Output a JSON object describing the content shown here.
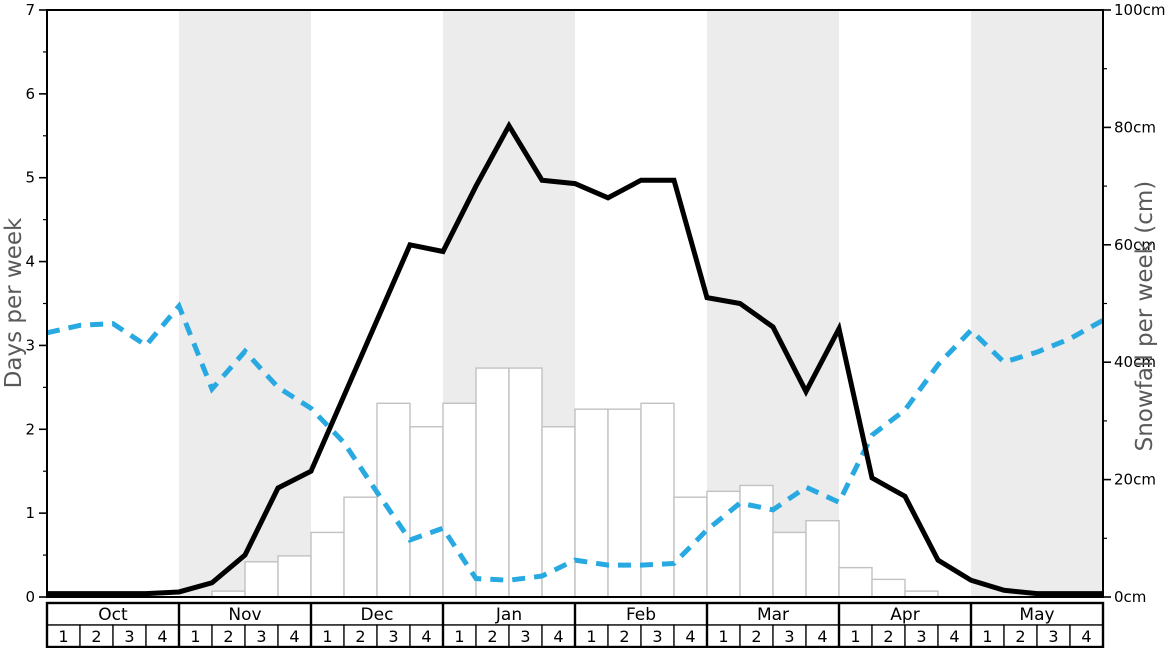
{
  "chart_data": {
    "type": "line",
    "title": "",
    "left_axis": {
      "label": "Days per week",
      "min": 0,
      "max": 7,
      "major_tick_step": 1,
      "minor_tick_step": 0.5,
      "tick_labels": [
        "0",
        "1",
        "2",
        "3",
        "4",
        "5",
        "6",
        "7"
      ]
    },
    "right_axis": {
      "label": "Snowfall per week (cm)",
      "min": 0,
      "max": 100,
      "major_tick_step": 20,
      "minor_tick_step": 10,
      "tick_labels": [
        "0cm",
        "20cm",
        "40cm",
        "60cm",
        "80cm",
        "100cm"
      ]
    },
    "x_axis": {
      "months": [
        "Oct",
        "Nov",
        "Dec",
        "Jan",
        "Feb",
        "Mar",
        "Apr",
        "May"
      ],
      "weeks_per_month": 4,
      "week_labels": [
        "1",
        "2",
        "3",
        "4"
      ],
      "shaded_months": [
        "Nov",
        "Jan",
        "Mar",
        "May"
      ]
    },
    "series": [
      {
        "name": "black-solid-line",
        "type": "line",
        "style": "solid",
        "axis": "left",
        "color": "#000000",
        "values_at_week_boundaries": [
          0.04,
          0.04,
          0.04,
          0.04,
          0.06,
          0.17,
          0.5,
          1.3,
          1.5,
          2.4,
          3.3,
          4.2,
          4.12,
          4.9,
          5.62,
          4.97,
          4.93,
          4.76,
          4.97,
          4.97,
          3.57,
          3.5,
          3.22,
          2.45,
          3.2,
          1.42,
          1.2,
          0.44,
          0.2,
          0.08,
          0.04,
          0.04,
          0.04
        ]
      },
      {
        "name": "blue-dashed-line",
        "type": "line",
        "style": "dashed",
        "axis": "left",
        "color": "#29a9e1",
        "values_at_week_boundaries": [
          3.15,
          3.24,
          3.26,
          3.0,
          3.47,
          2.48,
          2.93,
          2.5,
          2.25,
          1.84,
          1.25,
          0.68,
          0.82,
          0.22,
          0.2,
          0.25,
          0.44,
          0.38,
          0.38,
          0.4,
          0.8,
          1.12,
          1.04,
          1.31,
          1.13,
          1.93,
          2.23,
          2.77,
          3.18,
          2.8,
          2.92,
          3.08,
          3.3
        ]
      },
      {
        "name": "snowfall-bars",
        "type": "bar",
        "axis": "right",
        "fill": "#ffffff",
        "border": "#c2c2c2",
        "values_cm_per_week": [
          0,
          0,
          0,
          0,
          0,
          1,
          6,
          7,
          11,
          17,
          33,
          29,
          33,
          39,
          39,
          29,
          32,
          32,
          33,
          17,
          18,
          19,
          11,
          13,
          5,
          3,
          1,
          0,
          0,
          0,
          0,
          0
        ]
      }
    ],
    "colors": {
      "month_band": "#ececec",
      "axis": "#000000",
      "axis_title": "#595959"
    }
  }
}
